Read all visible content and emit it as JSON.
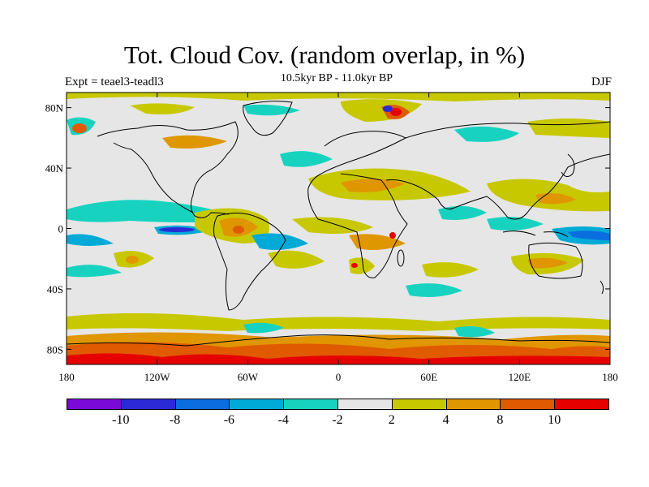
{
  "title": "Tot. Cloud Cov. (random overlap, in %)",
  "subtitle": "10.5kyr BP - 11.0kyr BP",
  "experiment_label": "Expt = teael3-teadl3",
  "season_label": "DJF",
  "map": {
    "projection": "cylindrical equidistant",
    "lon_range": [
      -180,
      180
    ],
    "lat_range": [
      -90,
      90
    ],
    "x_ticks": [
      {
        "value": -180,
        "label": "180"
      },
      {
        "value": -120,
        "label": "120W"
      },
      {
        "value": -60,
        "label": "60W"
      },
      {
        "value": 0,
        "label": "0"
      },
      {
        "value": 60,
        "label": "60E"
      },
      {
        "value": 120,
        "label": "120E"
      },
      {
        "value": 180,
        "label": "180"
      }
    ],
    "y_ticks": [
      {
        "value": 80,
        "label": "80N"
      },
      {
        "value": 40,
        "label": "40N"
      },
      {
        "value": 0,
        "label": "0"
      },
      {
        "value": -40,
        "label": "40S"
      },
      {
        "value": -80,
        "label": "80S"
      }
    ]
  },
  "colorbar": {
    "colors": [
      "#7a0ad8",
      "#2a2ad6",
      "#0a6ee0",
      "#00aad6",
      "#18d2c0",
      "#e6e6e6",
      "#c8c800",
      "#e09600",
      "#e05a00",
      "#e60000"
    ],
    "labels": [
      "-10",
      "-8",
      "-6",
      "-4",
      "-2",
      "2",
      "4",
      "8",
      "10"
    ]
  }
}
